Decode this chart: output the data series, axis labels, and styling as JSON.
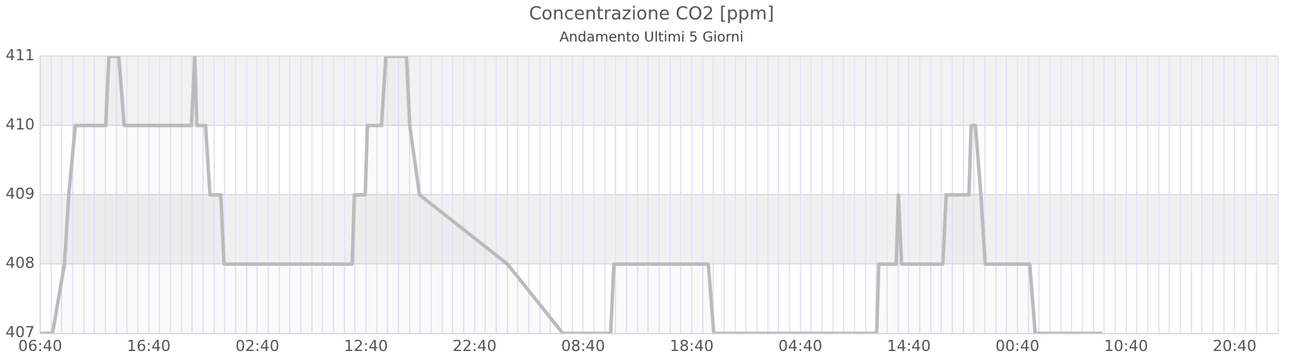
{
  "chart_data": {
    "type": "area",
    "title": "Concentrazione CO2 [ppm]",
    "subtitle": "Andamento Ultimi 5 Giorni",
    "x": [
      "--01-01T06:40",
      "--01-01T07:48",
      "--01-01T08:54",
      "--01-01T09:18",
      "--01-01T09:54",
      "--01-01T12:42",
      "--01-01T13:00",
      "--01-01T13:54",
      "--01-01T14:24",
      "--01-01T20:36",
      "--01-01T20:54",
      "--01-01T21:06",
      "--01-01T21:54",
      "--01-01T22:18",
      "--01-01T23:18",
      "--01-01T23:36",
      "--01-02T11:24",
      "--01-02T11:36",
      "--01-02T12:36",
      "--01-02T12:48",
      "--01-02T14:06",
      "--01-02T14:30",
      "--01-02T16:24",
      "--01-02T16:42",
      "--01-02T17:36",
      "--01-03T01:42",
      "--01-03T06:48",
      "--01-03T11:12",
      "--01-03T11:30",
      "--01-03T20:12",
      "--01-03T20:42",
      "--01-04T11:42",
      "--01-04T11:54",
      "--01-04T13:30",
      "--01-04T13:42",
      "--01-04T14:00",
      "--01-04T17:48",
      "--01-04T18:06",
      "--01-04T20:12",
      "--01-04T20:24",
      "--01-04T20:48",
      "--01-04T21:18",
      "--01-04T21:42",
      "--01-05T01:48",
      "--01-05T02:18",
      "--01-05T08:30"
    ],
    "series": [
      {
        "color": "#bbbbbb",
        "values": [
          407,
          407,
          408,
          409,
          410,
          410,
          411,
          411,
          410,
          410,
          411,
          410,
          410,
          409,
          409,
          408,
          408,
          409,
          409,
          410,
          410,
          411,
          411,
          410,
          409,
          408,
          407,
          407,
          408,
          408,
          407,
          407,
          408,
          408,
          409,
          408,
          408,
          409,
          409,
          410,
          410,
          409,
          408,
          408,
          407,
          407
        ]
      }
    ],
    "xlim": [
      "--01-01T06:40",
      "--01-06T00:40"
    ],
    "xticks": [
      {
        "value": "--01-01T06:40",
        "label": "06:40"
      },
      {
        "value": "--01-01T07:40",
        "label": null
      },
      {
        "value": "--01-01T08:40",
        "label": null
      },
      {
        "value": "--01-01T09:40",
        "label": null
      },
      {
        "value": "--01-01T10:40",
        "label": null
      },
      {
        "value": "--01-01T11:40",
        "label": null
      },
      {
        "value": "--01-01T12:40",
        "label": null
      },
      {
        "value": "--01-01T13:40",
        "label": null
      },
      {
        "value": "--01-01T14:40",
        "label": null
      },
      {
        "value": "--01-01T15:40",
        "label": null
      },
      {
        "value": "--01-01T16:40",
        "label": "16:40"
      },
      {
        "value": "--01-01T17:40",
        "label": null
      },
      {
        "value": "--01-01T18:40",
        "label": null
      },
      {
        "value": "--01-01T19:40",
        "label": null
      },
      {
        "value": "--01-01T20:40",
        "label": null
      },
      {
        "value": "--01-01T21:40",
        "label": null
      },
      {
        "value": "--01-01T22:40",
        "label": null
      },
      {
        "value": "--01-01T23:40",
        "label": null
      },
      {
        "value": "--01-02T00:40",
        "label": null
      },
      {
        "value": "--01-02T01:40",
        "label": null
      },
      {
        "value": "--01-02T02:40",
        "label": "02:40"
      },
      {
        "value": "--01-02T03:40",
        "label": null
      },
      {
        "value": "--01-02T04:40",
        "label": null
      },
      {
        "value": "--01-02T05:40",
        "label": null
      },
      {
        "value": "--01-02T06:40",
        "label": null
      },
      {
        "value": "--01-02T07:40",
        "label": null
      },
      {
        "value": "--01-02T08:40",
        "label": null
      },
      {
        "value": "--01-02T09:40",
        "label": null
      },
      {
        "value": "--01-02T10:40",
        "label": null
      },
      {
        "value": "--01-02T11:40",
        "label": null
      },
      {
        "value": "--01-02T12:40",
        "label": "12:40"
      },
      {
        "value": "--01-02T13:40",
        "label": null
      },
      {
        "value": "--01-02T14:40",
        "label": null
      },
      {
        "value": "--01-02T15:40",
        "label": null
      },
      {
        "value": "--01-02T16:40",
        "label": null
      },
      {
        "value": "--01-02T17:40",
        "label": null
      },
      {
        "value": "--01-02T18:40",
        "label": null
      },
      {
        "value": "--01-02T19:40",
        "label": null
      },
      {
        "value": "--01-02T20:40",
        "label": null
      },
      {
        "value": "--01-02T21:40",
        "label": null
      },
      {
        "value": "--01-02T22:40",
        "label": "22:40"
      },
      {
        "value": "--01-02T23:40",
        "label": null
      },
      {
        "value": "--01-03T00:40",
        "label": null
      },
      {
        "value": "--01-03T01:40",
        "label": null
      },
      {
        "value": "--01-03T02:40",
        "label": null
      },
      {
        "value": "--01-03T03:40",
        "label": null
      },
      {
        "value": "--01-03T04:40",
        "label": null
      },
      {
        "value": "--01-03T05:40",
        "label": null
      },
      {
        "value": "--01-03T06:40",
        "label": null
      },
      {
        "value": "--01-03T07:40",
        "label": null
      },
      {
        "value": "--01-03T08:40",
        "label": "08:40"
      },
      {
        "value": "--01-03T09:40",
        "label": null
      },
      {
        "value": "--01-03T10:40",
        "label": null
      },
      {
        "value": "--01-03T11:40",
        "label": null
      },
      {
        "value": "--01-03T12:40",
        "label": null
      },
      {
        "value": "--01-03T13:40",
        "label": null
      },
      {
        "value": "--01-03T14:40",
        "label": null
      },
      {
        "value": "--01-03T15:40",
        "label": null
      },
      {
        "value": "--01-03T16:40",
        "label": null
      },
      {
        "value": "--01-03T17:40",
        "label": null
      },
      {
        "value": "--01-03T18:40",
        "label": "18:40"
      },
      {
        "value": "--01-03T19:40",
        "label": null
      },
      {
        "value": "--01-03T20:40",
        "label": null
      },
      {
        "value": "--01-03T21:40",
        "label": null
      },
      {
        "value": "--01-03T22:40",
        "label": null
      },
      {
        "value": "--01-03T23:40",
        "label": null
      },
      {
        "value": "--01-04T00:40",
        "label": null
      },
      {
        "value": "--01-04T01:40",
        "label": null
      },
      {
        "value": "--01-04T02:40",
        "label": null
      },
      {
        "value": "--01-04T03:40",
        "label": null
      },
      {
        "value": "--01-04T04:40",
        "label": "04:40"
      },
      {
        "value": "--01-04T05:40",
        "label": null
      },
      {
        "value": "--01-04T06:40",
        "label": null
      },
      {
        "value": "--01-04T07:40",
        "label": null
      },
      {
        "value": "--01-04T08:40",
        "label": null
      },
      {
        "value": "--01-04T09:40",
        "label": null
      },
      {
        "value": "--01-04T10:40",
        "label": null
      },
      {
        "value": "--01-04T11:40",
        "label": null
      },
      {
        "value": "--01-04T12:40",
        "label": null
      },
      {
        "value": "--01-04T13:40",
        "label": null
      },
      {
        "value": "--01-04T14:40",
        "label": "14:40"
      },
      {
        "value": "--01-04T15:40",
        "label": null
      },
      {
        "value": "--01-04T16:40",
        "label": null
      },
      {
        "value": "--01-04T17:40",
        "label": null
      },
      {
        "value": "--01-04T18:40",
        "label": null
      },
      {
        "value": "--01-04T19:40",
        "label": null
      },
      {
        "value": "--01-04T20:40",
        "label": null
      },
      {
        "value": "--01-04T21:40",
        "label": null
      },
      {
        "value": "--01-04T22:40",
        "label": null
      },
      {
        "value": "--01-04T23:40",
        "label": null
      },
      {
        "value": "--01-05T00:40",
        "label": "00:40"
      },
      {
        "value": "--01-05T01:40",
        "label": null
      },
      {
        "value": "--01-05T02:40",
        "label": null
      },
      {
        "value": "--01-05T03:40",
        "label": null
      },
      {
        "value": "--01-05T04:40",
        "label": null
      },
      {
        "value": "--01-05T05:40",
        "label": null
      },
      {
        "value": "--01-05T06:40",
        "label": null
      },
      {
        "value": "--01-05T07:40",
        "label": null
      },
      {
        "value": "--01-05T08:40",
        "label": null
      },
      {
        "value": "--01-05T09:40",
        "label": null
      },
      {
        "value": "--01-05T10:40",
        "label": "10:40"
      },
      {
        "value": "--01-05T11:40",
        "label": null
      },
      {
        "value": "--01-05T12:40",
        "label": null
      },
      {
        "value": "--01-05T13:40",
        "label": null
      },
      {
        "value": "--01-05T14:40",
        "label": null
      },
      {
        "value": "--01-05T15:40",
        "label": null
      },
      {
        "value": "--01-05T16:40",
        "label": null
      },
      {
        "value": "--01-05T17:40",
        "label": null
      },
      {
        "value": "--01-05T18:40",
        "label": null
      },
      {
        "value": "--01-05T19:40",
        "label": null
      },
      {
        "value": "--01-05T20:40",
        "label": "20:40"
      },
      {
        "value": "--01-05T21:40",
        "label": null
      },
      {
        "value": "--01-05T22:40",
        "label": null
      },
      {
        "value": "--01-05T23:40",
        "label": null
      },
      {
        "value": "--01-06T00:40",
        "label": null
      }
    ],
    "ylim": [
      407,
      411
    ],
    "yticks": [
      407,
      408,
      409,
      410,
      411
    ],
    "bands": [
      {
        "axis": "y",
        "from": 408,
        "to": 409,
        "color": "#f0f0f0"
      },
      {
        "axis": "y",
        "from": 410,
        "to": 411,
        "color": "#f2f2f2"
      }
    ],
    "grid": true,
    "legend": false,
    "marker": "none",
    "line_style": "solid"
  }
}
